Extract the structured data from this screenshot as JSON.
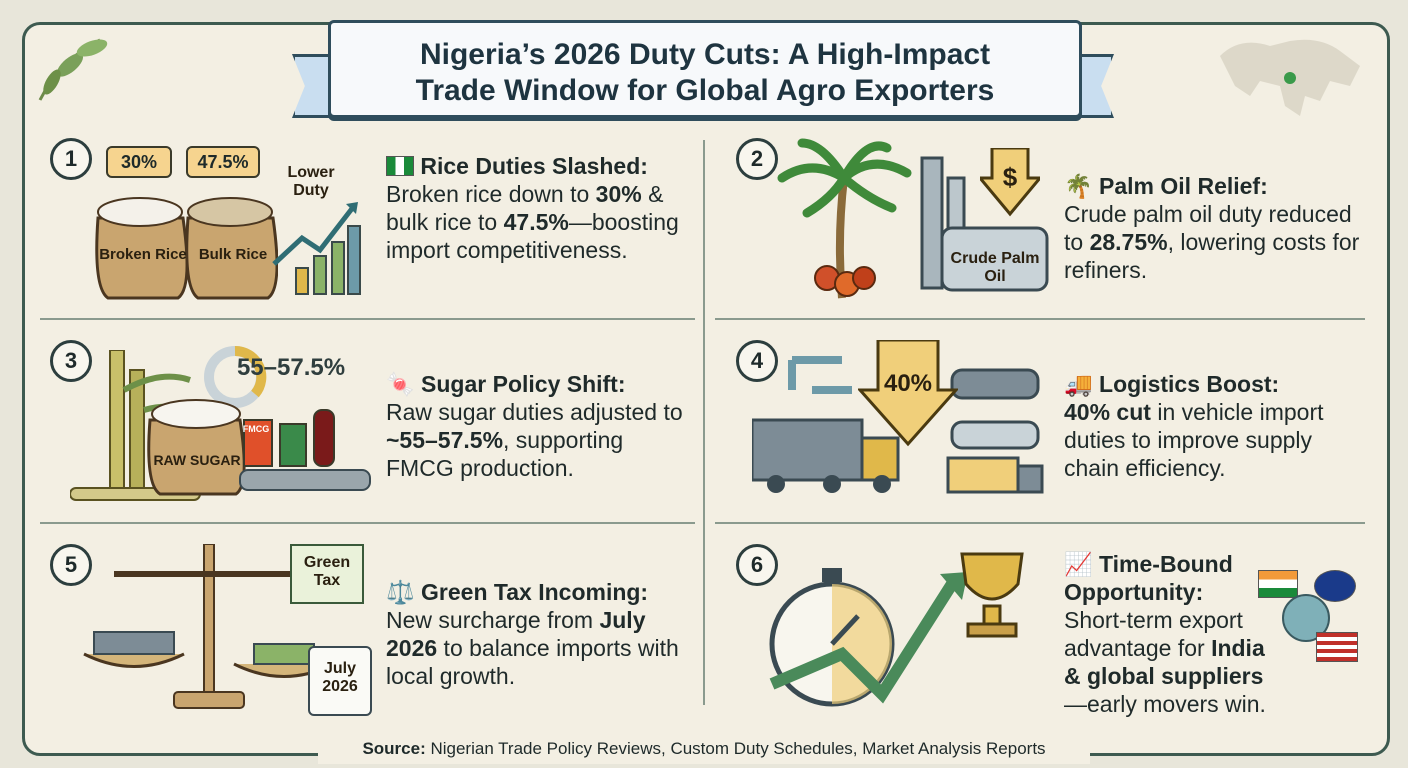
{
  "title": {
    "line1": "Nigeria’s 2026 Duty Cuts: A High-Impact",
    "line2": "Trade Window for Global Agro Exporters"
  },
  "panels": [
    {
      "number": "1",
      "icon": "nigeria-flag-icon",
      "heading": "Rice Duties Slashed:",
      "text_a": "Broken rice down to ",
      "bold_a": "30%",
      "text_b": " & bulk rice to ",
      "bold_b": "47.5%",
      "text_c": "—boosting import competitiveness.",
      "art": {
        "tag1": "30%",
        "tag2": "47.5%",
        "sack1": "Broken Rice",
        "sack2": "Bulk Rice",
        "chart_label": "Lower Duty"
      }
    },
    {
      "number": "2",
      "icon": "palm-tree-icon",
      "heading": "Palm Oil Relief:",
      "text_a": "Crude palm oil duty reduced to ",
      "bold_a": "28.75%",
      "text_b": ", lowering costs for refiners.",
      "art": {
        "tank_label": "Crude Palm Oil",
        "price_symbol": "$"
      }
    },
    {
      "number": "3",
      "icon": "candy-icon",
      "heading": "Sugar Policy Shift:",
      "text_a": "Raw sugar duties adjusted to ",
      "bold_a": "~55–57.5%",
      "text_b": ", supporting FMCG production.",
      "art": {
        "rate_label": "55–57.5%",
        "sack": "RAW SUGAR",
        "pack": "FMCG"
      }
    },
    {
      "number": "4",
      "icon": "truck-icon",
      "heading": "Logistics Boost:",
      "bold_a": "40% cut",
      "text_a": " in vehicle import duties to improve supply chain efficiency.",
      "art": {
        "arrow_label": "40%"
      }
    },
    {
      "number": "5",
      "icon": "scales-icon",
      "heading": "Green Tax Incoming:",
      "text_a": "New surcharge from ",
      "bold_a": "July 2026",
      "text_b": " to balance imports with local growth.",
      "art": {
        "stamp": "Green Tax",
        "calendar": "July 2026"
      }
    },
    {
      "number": "6",
      "icon": "chart-increasing-icon",
      "heading": "Time-Bound Opportunity:",
      "text_a": "Short-term export advantage for ",
      "bold_a": "India & global suppliers",
      "text_b": "—early movers win."
    }
  ],
  "source": {
    "label": "Source:",
    "text": " Nigerian Trade Policy Reviews, Custom Duty Schedules, Market Analysis Reports"
  },
  "colors": {
    "border": "#3d5a50",
    "accent_gold": "#e0b84a",
    "leaf_green": "#7aa05a",
    "background": "#f3efe3"
  }
}
